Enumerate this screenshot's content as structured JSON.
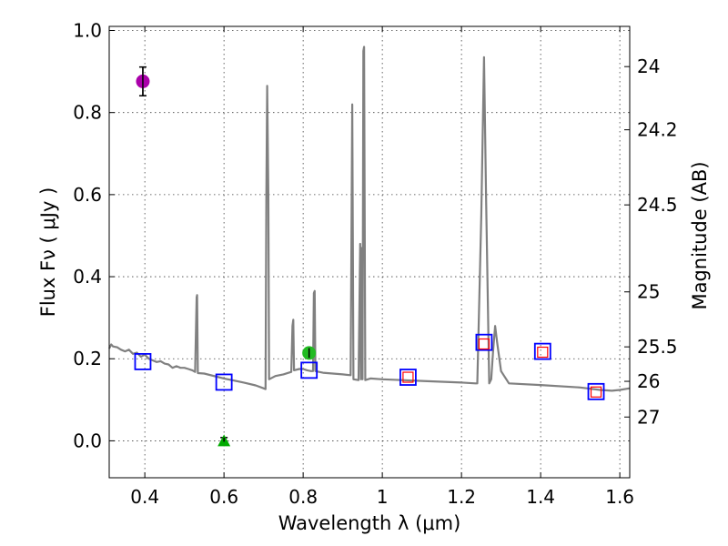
{
  "chart_data": {
    "type": "scatter",
    "xlabel": "Wavelength  λ (μm)",
    "ylabel": "Flux  Fν  ( μJy )",
    "ylabel_right": "Magnitude (AB)",
    "xlim": [
      0.31,
      1.625
    ],
    "ylim": [
      -0.09,
      1.01
    ],
    "x_ticks": [
      0.4,
      0.6,
      0.8,
      1.0,
      1.2,
      1.4,
      1.6
    ],
    "x_tick_labels": [
      "0.4",
      "0.6",
      "0.8",
      "1",
      "1.2",
      "1.4",
      "1.6"
    ],
    "y_ticks": [
      0.0,
      0.2,
      0.4,
      0.6,
      0.8,
      1.0
    ],
    "y_tick_labels": [
      "0.0",
      "0.2",
      "0.4",
      "0.6",
      "0.8",
      "1.0"
    ],
    "right_ticks": [
      {
        "label": "24",
        "flux": 0.912
      },
      {
        "label": "24.2",
        "flux": 0.758
      },
      {
        "label": "24.5",
        "flux": 0.575
      },
      {
        "label": "25",
        "flux": 0.363
      },
      {
        "label": "25.5",
        "flux": 0.229
      },
      {
        "label": "26",
        "flux": 0.145
      },
      {
        "label": "27",
        "flux": 0.058
      }
    ],
    "grid": true,
    "series": [
      {
        "name": "model spectrum",
        "kind": "line",
        "color": "#808080",
        "points": [
          [
            0.31,
            0.225
          ],
          [
            0.315,
            0.235
          ],
          [
            0.32,
            0.23
          ],
          [
            0.33,
            0.228
          ],
          [
            0.34,
            0.222
          ],
          [
            0.35,
            0.218
          ],
          [
            0.36,
            0.222
          ],
          [
            0.37,
            0.212
          ],
          [
            0.38,
            0.215
          ],
          [
            0.39,
            0.205
          ],
          [
            0.4,
            0.21
          ],
          [
            0.41,
            0.2
          ],
          [
            0.42,
            0.196
          ],
          [
            0.43,
            0.192
          ],
          [
            0.44,
            0.194
          ],
          [
            0.45,
            0.188
          ],
          [
            0.46,
            0.186
          ],
          [
            0.47,
            0.178
          ],
          [
            0.48,
            0.182
          ],
          [
            0.49,
            0.178
          ],
          [
            0.5,
            0.178
          ],
          [
            0.51,
            0.175
          ],
          [
            0.52,
            0.172
          ],
          [
            0.527,
            0.168
          ],
          [
            0.531,
            0.35
          ],
          [
            0.532,
            0.355
          ],
          [
            0.534,
            0.165
          ],
          [
            0.55,
            0.164
          ],
          [
            0.6,
            0.152
          ],
          [
            0.65,
            0.142
          ],
          [
            0.68,
            0.135
          ],
          [
            0.7,
            0.128
          ],
          [
            0.705,
            0.126
          ],
          [
            0.707,
            0.6
          ],
          [
            0.709,
            0.865
          ],
          [
            0.712,
            0.6
          ],
          [
            0.714,
            0.15
          ],
          [
            0.73,
            0.158
          ],
          [
            0.75,
            0.162
          ],
          [
            0.77,
            0.168
          ],
          [
            0.773,
            0.28
          ],
          [
            0.775,
            0.295
          ],
          [
            0.777,
            0.172
          ],
          [
            0.79,
            0.175
          ],
          [
            0.8,
            0.175
          ],
          [
            0.81,
            0.172
          ],
          [
            0.82,
            0.17
          ],
          [
            0.825,
            0.17
          ],
          [
            0.827,
            0.36
          ],
          [
            0.829,
            0.365
          ],
          [
            0.831,
            0.17
          ],
          [
            0.85,
            0.166
          ],
          [
            0.9,
            0.162
          ],
          [
            0.92,
            0.16
          ],
          [
            0.924,
            0.82
          ],
          [
            0.927,
            0.15
          ],
          [
            0.94,
            0.148
          ],
          [
            0.944,
            0.48
          ],
          [
            0.946,
            0.15
          ],
          [
            0.948,
            0.47
          ],
          [
            0.95,
            0.15
          ],
          [
            0.952,
            0.95
          ],
          [
            0.954,
            0.96
          ],
          [
            0.957,
            0.148
          ],
          [
            0.97,
            0.152
          ],
          [
            1.0,
            0.15
          ],
          [
            1.05,
            0.148
          ],
          [
            1.1,
            0.146
          ],
          [
            1.15,
            0.144
          ],
          [
            1.2,
            0.142
          ],
          [
            1.235,
            0.14
          ],
          [
            1.24,
            0.14
          ],
          [
            1.25,
            0.55
          ],
          [
            1.257,
            0.935
          ],
          [
            1.262,
            0.6
          ],
          [
            1.27,
            0.14
          ],
          [
            1.275,
            0.15
          ],
          [
            1.28,
            0.22
          ],
          [
            1.285,
            0.28
          ],
          [
            1.29,
            0.24
          ],
          [
            1.3,
            0.17
          ],
          [
            1.32,
            0.14
          ],
          [
            1.4,
            0.136
          ],
          [
            1.5,
            0.13
          ],
          [
            1.55,
            0.124
          ],
          [
            1.58,
            0.122
          ],
          [
            1.6,
            0.124
          ],
          [
            1.625,
            0.128
          ]
        ]
      },
      {
        "name": "model photometry",
        "kind": "square",
        "color": "#0000ff",
        "points": [
          [
            0.395,
            0.193
          ],
          [
            0.6,
            0.143
          ],
          [
            0.815,
            0.172
          ],
          [
            1.065,
            0.155
          ],
          [
            1.257,
            0.24
          ],
          [
            1.405,
            0.218
          ],
          [
            1.54,
            0.12
          ]
        ]
      },
      {
        "name": "observed photometry",
        "kind": "square",
        "color": "#ff0000",
        "points": [
          [
            1.065,
            0.155
          ],
          [
            1.257,
            0.236
          ],
          [
            1.405,
            0.216
          ],
          [
            1.54,
            0.119
          ]
        ]
      },
      {
        "name": "purple point",
        "kind": "circle",
        "color": "#aa00aa",
        "points": [
          [
            0.395,
            0.876
          ]
        ],
        "errors": [
          0.035
        ]
      },
      {
        "name": "green point",
        "kind": "circle",
        "color": "#22bb22",
        "points": [
          [
            0.815,
            0.214
          ]
        ],
        "errors": [
          0.012
        ]
      },
      {
        "name": "upper limit",
        "kind": "triangle",
        "color": "#00aa00",
        "points": [
          [
            0.6,
            0.0
          ]
        ],
        "errors": [
          0.008
        ]
      }
    ]
  }
}
